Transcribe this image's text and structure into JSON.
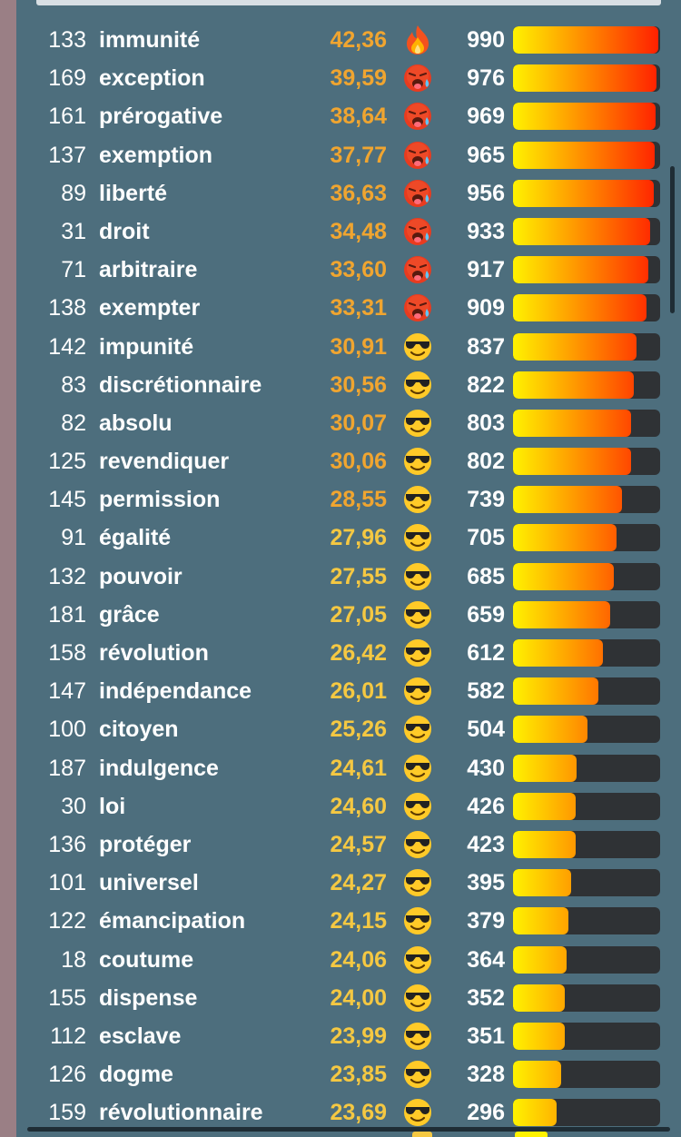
{
  "colors": {
    "temp_hot": "#f0a530",
    "temp_warm": "#f5c842",
    "bar_start": "#fff200",
    "bar_end": "#ff1e00",
    "track": "#2f3235"
  },
  "score_max": 1000,
  "rows": [
    {
      "rank": "133",
      "word": "immunité",
      "temperature": "42,36",
      "icon": "fire-icon",
      "score": 990
    },
    {
      "rank": "169",
      "word": "exception",
      "temperature": "39,59",
      "icon": "hot-face-icon",
      "score": 976
    },
    {
      "rank": "161",
      "word": "prérogative",
      "temperature": "38,64",
      "icon": "hot-face-icon",
      "score": 969
    },
    {
      "rank": "137",
      "word": "exemption",
      "temperature": "37,77",
      "icon": "hot-face-icon",
      "score": 965
    },
    {
      "rank": "89",
      "word": "liberté",
      "temperature": "36,63",
      "icon": "hot-face-icon",
      "score": 956
    },
    {
      "rank": "31",
      "word": "droit",
      "temperature": "34,48",
      "icon": "hot-face-icon",
      "score": 933
    },
    {
      "rank": "71",
      "word": "arbitraire",
      "temperature": "33,60",
      "icon": "hot-face-icon",
      "score": 917
    },
    {
      "rank": "138",
      "word": "exempter",
      "temperature": "33,31",
      "icon": "hot-face-icon",
      "score": 909
    },
    {
      "rank": "142",
      "word": "impunité",
      "temperature": "30,91",
      "icon": "sunglasses-face-icon",
      "score": 837
    },
    {
      "rank": "83",
      "word": "discrétionnaire",
      "temperature": "30,56",
      "icon": "sunglasses-face-icon",
      "score": 822
    },
    {
      "rank": "82",
      "word": "absolu",
      "temperature": "30,07",
      "icon": "sunglasses-face-icon",
      "score": 803
    },
    {
      "rank": "125",
      "word": "revendiquer",
      "temperature": "30,06",
      "icon": "sunglasses-face-icon",
      "score": 802
    },
    {
      "rank": "145",
      "word": "permission",
      "temperature": "28,55",
      "icon": "sunglasses-face-icon",
      "score": 739
    },
    {
      "rank": "91",
      "word": "égalité",
      "temperature": "27,96",
      "icon": "sunglasses-face-icon",
      "score": 705
    },
    {
      "rank": "132",
      "word": "pouvoir",
      "temperature": "27,55",
      "icon": "sunglasses-face-icon",
      "score": 685
    },
    {
      "rank": "181",
      "word": "grâce",
      "temperature": "27,05",
      "icon": "sunglasses-face-icon",
      "score": 659
    },
    {
      "rank": "158",
      "word": "révolution",
      "temperature": "26,42",
      "icon": "sunglasses-face-icon",
      "score": 612
    },
    {
      "rank": "147",
      "word": "indépendance",
      "temperature": "26,01",
      "icon": "sunglasses-face-icon",
      "score": 582
    },
    {
      "rank": "100",
      "word": "citoyen",
      "temperature": "25,26",
      "icon": "sunglasses-face-icon",
      "score": 504
    },
    {
      "rank": "187",
      "word": "indulgence",
      "temperature": "24,61",
      "icon": "sunglasses-face-icon",
      "score": 430
    },
    {
      "rank": "30",
      "word": "loi",
      "temperature": "24,60",
      "icon": "sunglasses-face-icon",
      "score": 426
    },
    {
      "rank": "136",
      "word": "protéger",
      "temperature": "24,57",
      "icon": "sunglasses-face-icon",
      "score": 423
    },
    {
      "rank": "101",
      "word": "universel",
      "temperature": "24,27",
      "icon": "sunglasses-face-icon",
      "score": 395
    },
    {
      "rank": "122",
      "word": "émancipation",
      "temperature": "24,15",
      "icon": "sunglasses-face-icon",
      "score": 379
    },
    {
      "rank": "18",
      "word": "coutume",
      "temperature": "24,06",
      "icon": "sunglasses-face-icon",
      "score": 364
    },
    {
      "rank": "155",
      "word": "dispense",
      "temperature": "24,00",
      "icon": "sunglasses-face-icon",
      "score": 352
    },
    {
      "rank": "112",
      "word": "esclave",
      "temperature": "23,99",
      "icon": "sunglasses-face-icon",
      "score": 351
    },
    {
      "rank": "126",
      "word": "dogme",
      "temperature": "23,85",
      "icon": "sunglasses-face-icon",
      "score": 328
    },
    {
      "rank": "159",
      "word": "révolutionnaire",
      "temperature": "23,69",
      "icon": "sunglasses-face-icon",
      "score": 296
    }
  ]
}
